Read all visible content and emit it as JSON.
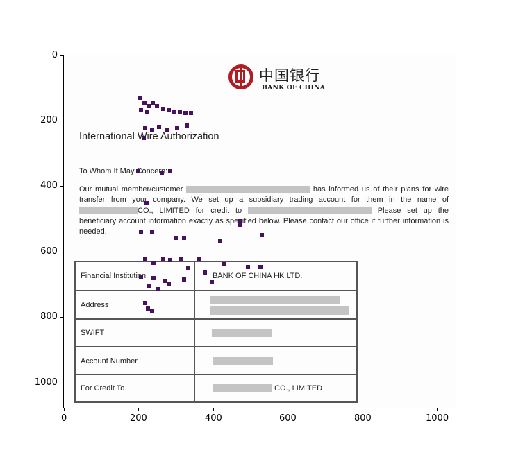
{
  "axes": {
    "x_ticks": [
      "0",
      "200",
      "400",
      "600",
      "800",
      "1000"
    ],
    "y_ticks": [
      "0",
      "200",
      "400",
      "600",
      "800",
      "1000"
    ]
  },
  "document": {
    "logo_cn": "中国银行",
    "logo_en": "BANK OF CHINA",
    "title": "International Wire Authorization",
    "salutation": "To Whom It May Concern:",
    "para_1": "Our mutual member/customer",
    "para_2": "has informed us of their plans for wire transfer from your company. We set up a subsidiary trading account for them in the name of",
    "para_3": "CO., LIMITED for credit to",
    "para_4": "Please set up the beneficiary account information exactly as specified below. Please contact our office if further information is needed.",
    "table": [
      {
        "label": "Financial Institution",
        "value": "BANK OF CHINA HK LTD."
      },
      {
        "label": "Address",
        "value": ""
      },
      {
        "label": "SWIFT",
        "value": ""
      },
      {
        "label": "Account Number",
        "value": ""
      },
      {
        "label": "For Credit To",
        "value": "CO., LIMITED"
      }
    ]
  }
}
